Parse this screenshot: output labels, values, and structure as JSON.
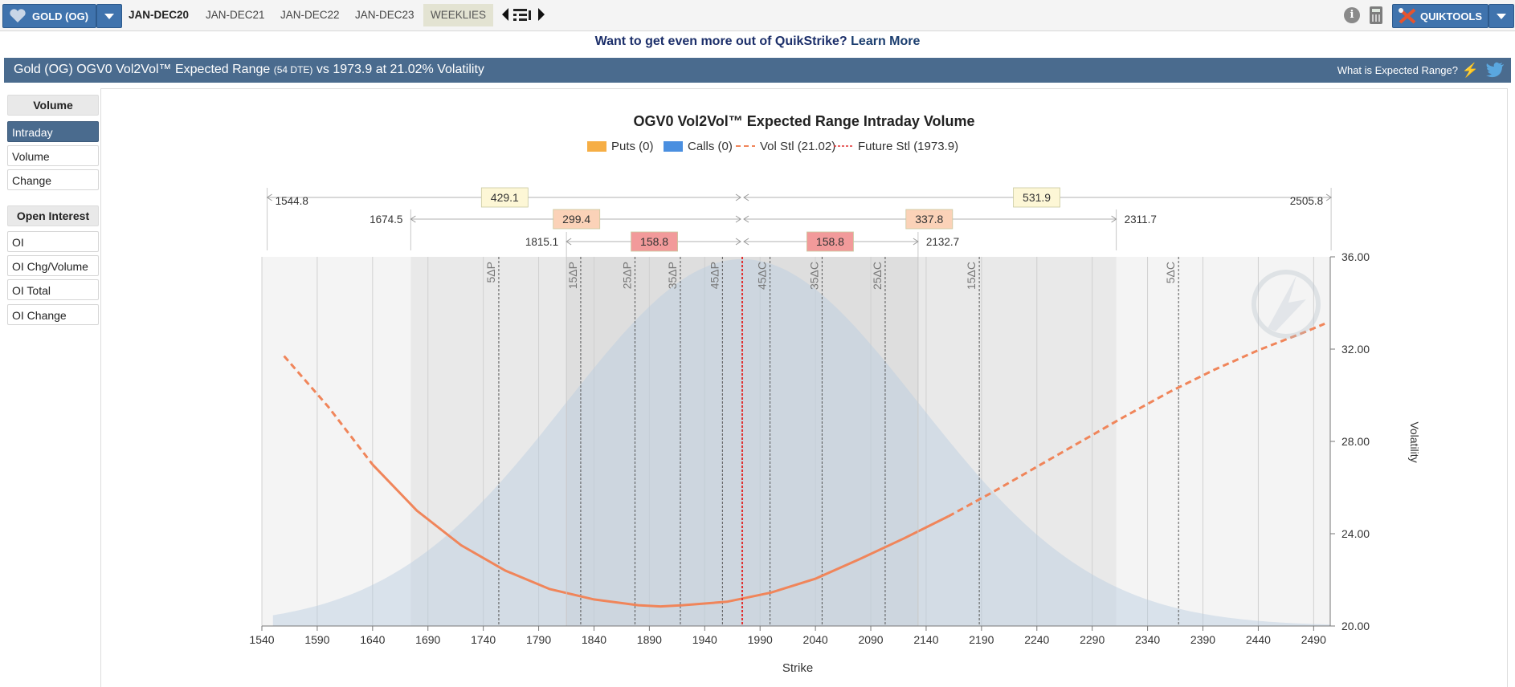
{
  "toolbar": {
    "product_label": "GOLD (OG)",
    "tabs": [
      {
        "label": "JAN-DEC20",
        "active": true
      },
      {
        "label": "JAN-DEC21",
        "active": false
      },
      {
        "label": "JAN-DEC22",
        "active": false
      },
      {
        "label": "JAN-DEC23",
        "active": false
      },
      {
        "label": "WEEKLIES",
        "active": false
      }
    ],
    "quiktools_label": "QUIKTOOLS",
    "info_glyph": "i"
  },
  "promo": {
    "text": "Want to get even more out of QuikStrike?",
    "link": "Learn More"
  },
  "header": {
    "title_main": "Gold (OG) OGV0 Vol2Vol™ Expected Range",
    "title_dte": "(54 DTE)",
    "title_tail": "vs 1973.9 at 21.02% Volatility",
    "right_link": "What is Expected Range?",
    "bar_color": "#4a6b8e"
  },
  "sidebar": {
    "volume_header": "Volume",
    "volume_items": [
      {
        "label": "Intraday",
        "active": true
      },
      {
        "label": "Volume",
        "active": false
      },
      {
        "label": "Change",
        "active": false
      }
    ],
    "oi_header": "Open Interest",
    "oi_items": [
      {
        "label": "OI"
      },
      {
        "label": "OI Chg/Volume"
      },
      {
        "label": "OI Total"
      },
      {
        "label": "OI Change"
      }
    ]
  },
  "chart_data": {
    "type": "line",
    "title": "OGV0 Vol2Vol™ Expected Range Intraday Volume",
    "xlabel": "Strike",
    "ylabel": "Volatility",
    "xlim": [
      1540,
      2505
    ],
    "ylim": [
      20,
      36
    ],
    "x_ticks": [
      1540,
      1590,
      1640,
      1690,
      1740,
      1790,
      1840,
      1890,
      1940,
      1990,
      2040,
      2090,
      2140,
      2190,
      2240,
      2290,
      2340,
      2390,
      2440,
      2490
    ],
    "y_ticks": [
      "20.00",
      "24.00",
      "28.00",
      "32.00",
      "36.00"
    ],
    "legend": [
      {
        "label": "Puts (0)",
        "color": "#f6ae45",
        "kind": "box"
      },
      {
        "label": "Calls (0)",
        "color": "#4a8fe0",
        "kind": "box"
      },
      {
        "label": "Vol Stl (21.02)",
        "color": "#f0855a",
        "kind": "dash"
      },
      {
        "label": "Future Stl (1973.9)",
        "color": "#e03030",
        "kind": "dot"
      }
    ],
    "future_price": 1973.9,
    "vol_curve": {
      "name": "Vol Stl (21.02)",
      "x": [
        1560,
        1600,
        1640,
        1680,
        1720,
        1760,
        1800,
        1840,
        1880,
        1900,
        1920,
        1960,
        2000,
        2040,
        2080,
        2120,
        2160,
        2200,
        2240,
        2280,
        2320,
        2360,
        2400,
        2440,
        2480,
        2500
      ],
      "y": [
        31.7,
        29.5,
        27.0,
        25.0,
        23.5,
        22.4,
        21.6,
        21.15,
        20.9,
        20.85,
        20.9,
        21.05,
        21.45,
        22.05,
        22.9,
        23.8,
        24.75,
        25.8,
        26.9,
        28.0,
        29.1,
        30.15,
        31.1,
        31.95,
        32.7,
        33.1
      ]
    },
    "distribution": {
      "mean": 1973.9,
      "peak_vol": 35.9,
      "base_vol": 20.0
    },
    "bands": [
      {
        "low": 1544.8,
        "high": 2505.8,
        "low_span": "429.1",
        "high_span": "531.9",
        "label_color": "#fdf7d6"
      },
      {
        "low": 1674.5,
        "high": 2311.7,
        "low_span": "299.4",
        "high_span": "337.8",
        "label_color": "#fbd2b8"
      },
      {
        "low": 1815.1,
        "high": 2132.7,
        "low_span": "158.8",
        "high_span": "158.8",
        "label_color": "#f29a9a"
      }
    ],
    "band_labels": [
      "1544.8",
      "2505.8",
      "1674.5",
      "2311.7",
      "1815.1",
      "2132.7"
    ],
    "delta_lines": [
      {
        "label": "5ΔP",
        "x": 1754
      },
      {
        "label": "15ΔP",
        "x": 1828
      },
      {
        "label": "25ΔP",
        "x": 1877
      },
      {
        "label": "35ΔP",
        "x": 1918
      },
      {
        "label": "45ΔP",
        "x": 1956
      },
      {
        "label": "45ΔC",
        "x": 1999
      },
      {
        "label": "35ΔC",
        "x": 2046
      },
      {
        "label": "25ΔC",
        "x": 2103
      },
      {
        "label": "15ΔC",
        "x": 2188
      },
      {
        "label": "5ΔC",
        "x": 2368
      }
    ]
  }
}
